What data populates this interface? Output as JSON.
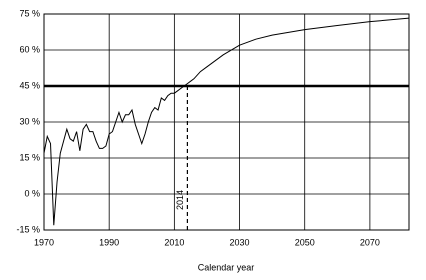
{
  "chart_data": {
    "type": "line",
    "x_label": "Calendar year",
    "x": [
      1970,
      1971,
      1972,
      1973,
      1974,
      1975,
      1977,
      1978,
      1979,
      1980,
      1981,
      1982,
      1983,
      1984,
      1985,
      1986,
      1987,
      1988,
      1989,
      1990,
      1991,
      1992,
      1993,
      1994,
      1995,
      1996,
      1997,
      1998,
      1999,
      2000,
      2001,
      2002,
      2003,
      2004,
      2005,
      2006,
      2007,
      2008,
      2009,
      2010,
      2011,
      2012,
      2013,
      2014,
      2015,
      2016,
      2018,
      2020,
      2025,
      2030,
      2035,
      2040,
      2050,
      2060,
      2070,
      2082
    ],
    "values": [
      17,
      24,
      21,
      -13,
      5,
      17,
      27,
      23,
      22,
      26,
      18,
      27,
      29,
      26,
      26,
      22,
      19,
      19,
      20,
      25,
      26,
      30,
      34,
      30,
      33,
      33,
      35,
      29,
      25,
      21,
      25,
      30,
      34,
      36,
      35,
      40,
      39,
      41,
      42,
      42,
      43,
      44,
      45,
      46,
      47,
      48,
      51,
      53,
      58,
      62,
      64.5,
      66.2,
      68.5,
      70.2,
      71.8,
      73.3
    ],
    "color": "#000000",
    "xlim": [
      1970,
      2082
    ],
    "xticks": [
      1970,
      1990,
      2010,
      2030,
      2050,
      2070
    ],
    "ylim": [
      -15,
      75
    ],
    "yticks": [
      {
        "value": -15,
        "label": "-15 %"
      },
      {
        "value": 0,
        "label": "0 %"
      },
      {
        "value": 15,
        "label": "15 %"
      },
      {
        "value": 30,
        "label": "30 %"
      },
      {
        "value": 45,
        "label": "45 %"
      },
      {
        "value": 60,
        "label": "60 %"
      },
      {
        "value": 75,
        "label": "75 %"
      }
    ],
    "grid": true,
    "reference_line": {
      "y": 45
    },
    "marker_line": {
      "x": 2014,
      "label": "2014"
    }
  }
}
